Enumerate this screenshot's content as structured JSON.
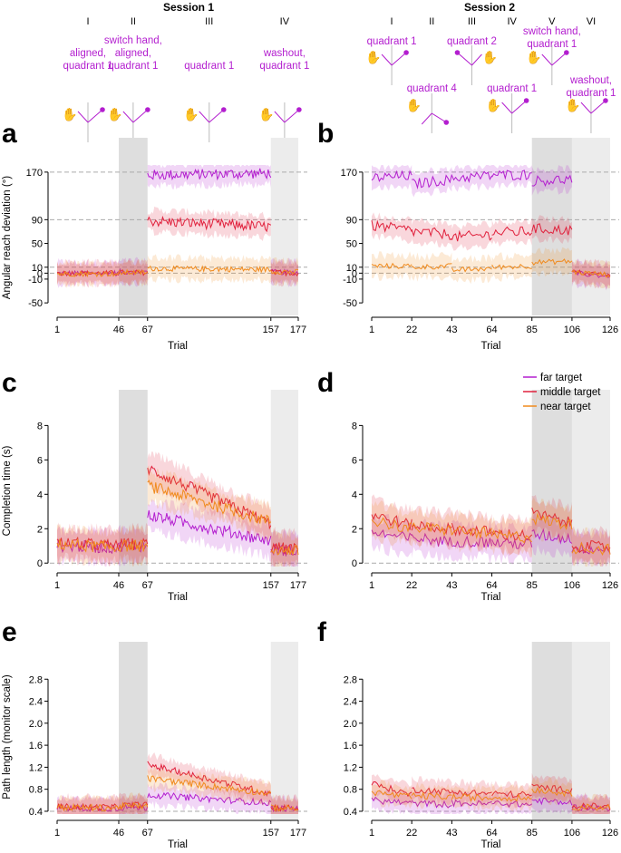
{
  "chart_data": {
    "type": "line",
    "legend": {
      "placement": "top-right of panel d",
      "entries": [
        {
          "name": "far target",
          "color": "#b31ecf"
        },
        {
          "name": "middle target",
          "color": "#e0203c"
        },
        {
          "name": "near target",
          "color": "#f08a1c"
        }
      ]
    },
    "colors": {
      "far": "#b31ecf",
      "middle": "#e0203c",
      "near": "#f08a1c",
      "label": "#b31ecf",
      "shade_dark": "#dedede",
      "shade_light": "#ececec"
    },
    "sessions": [
      {
        "title": "Session 1",
        "phases": [
          {
            "numeral": "I",
            "label": "aligned, quadrant 1",
            "lines": [
              "aligned,",
              "quadrant 1"
            ],
            "start": 1,
            "end": 46,
            "shade": "none"
          },
          {
            "numeral": "II",
            "label": "switch hand, aligned, quadrant 1",
            "lines": [
              "switch hand,",
              "aligned,",
              "quadrant 1"
            ],
            "start": 46,
            "end": 67,
            "shade": "dark"
          },
          {
            "numeral": "III",
            "label": "quadrant 1",
            "lines": [
              "quadrant 1"
            ],
            "start": 67,
            "end": 157,
            "shade": "none"
          },
          {
            "numeral": "IV",
            "label": "washout, quadrant 1",
            "lines": [
              "washout,",
              "quadrant 1"
            ],
            "start": 157,
            "end": 177,
            "shade": "light"
          }
        ],
        "xlim": [
          1,
          177
        ],
        "xticks": [
          1,
          46,
          67,
          157,
          177
        ]
      },
      {
        "title": "Session 2",
        "phases": [
          {
            "numeral": "I",
            "label": "quadrant 1",
            "lines": [
              "quadrant 1"
            ],
            "start": 1,
            "end": 22,
            "shade": "none"
          },
          {
            "numeral": "II",
            "label": "quadrant 4",
            "lines": [
              "quadrant 4"
            ],
            "start": 22,
            "end": 43,
            "shade": "none"
          },
          {
            "numeral": "III",
            "label": "quadrant 2",
            "lines": [
              "quadrant 2"
            ],
            "start": 43,
            "end": 64,
            "shade": "none"
          },
          {
            "numeral": "IV",
            "label": "quadrant 1",
            "lines": [
              "quadrant 1"
            ],
            "start": 64,
            "end": 85,
            "shade": "none"
          },
          {
            "numeral": "V",
            "label": "switch hand, quadrant 1",
            "lines": [
              "switch hand,",
              "quadrant 1"
            ],
            "start": 85,
            "end": 106,
            "shade": "dark"
          },
          {
            "numeral": "VI",
            "label": "washout, quadrant 1",
            "lines": [
              "washout,",
              "quadrant 1"
            ],
            "start": 106,
            "end": 126,
            "shade": "light"
          }
        ],
        "xlim": [
          1,
          126
        ],
        "xticks": [
          1,
          22,
          43,
          64,
          85,
          106,
          126
        ]
      }
    ],
    "panels": [
      {
        "letter": "a",
        "session": 0,
        "metric": "angle",
        "ylabel": "Angular reach deviation (°)",
        "xlabel": "Trial",
        "ylim": [
          -62,
          182
        ],
        "yticks": [
          170,
          90,
          50,
          10,
          0,
          -10,
          -50
        ],
        "ref_lines": [
          170,
          90,
          10,
          0
        ],
        "series": [
          {
            "name": "far target",
            "segments": [
              [
                1,
                46,
                0,
                0
              ],
              [
                46,
                67,
                2,
                2
              ],
              [
                67,
                157,
                165,
                168
              ],
              [
                157,
                177,
                2,
                1
              ]
            ]
          },
          {
            "name": "middle target",
            "segments": [
              [
                1,
                46,
                0,
                0
              ],
              [
                46,
                67,
                1,
                1
              ],
              [
                67,
                157,
                88,
                78
              ],
              [
                157,
                177,
                1,
                0
              ]
            ]
          },
          {
            "name": "near target",
            "segments": [
              [
                1,
                46,
                -1,
                -1
              ],
              [
                46,
                67,
                1,
                1
              ],
              [
                67,
                157,
                8,
                6
              ],
              [
                157,
                177,
                3,
                2
              ]
            ]
          }
        ]
      },
      {
        "letter": "b",
        "session": 1,
        "metric": "angle",
        "ylabel": "",
        "xlabel": "Trial",
        "ylim": [
          -62,
          182
        ],
        "yticks": [
          170,
          90,
          50,
          10,
          0,
          -10,
          -50
        ],
        "ref_lines": [
          170,
          90,
          10,
          0
        ],
        "series": [
          {
            "name": "far target",
            "segments": [
              [
                1,
                22,
                160,
                164
              ],
              [
                22,
                43,
                150,
                158
              ],
              [
                43,
                64,
                160,
                164
              ],
              [
                64,
                85,
                165,
                166
              ],
              [
                85,
                106,
                155,
                158
              ],
              [
                106,
                126,
                0,
                -5
              ]
            ]
          },
          {
            "name": "middle target",
            "segments": [
              [
                1,
                22,
                80,
                72
              ],
              [
                22,
                43,
                70,
                65
              ],
              [
                43,
                64,
                60,
                65
              ],
              [
                64,
                85,
                68,
                70
              ],
              [
                85,
                106,
                75,
                72
              ],
              [
                106,
                126,
                2,
                -3
              ]
            ]
          },
          {
            "name": "near target",
            "segments": [
              [
                1,
                22,
                12,
                12
              ],
              [
                22,
                43,
                10,
                12
              ],
              [
                43,
                64,
                5,
                8
              ],
              [
                64,
                85,
                10,
                12
              ],
              [
                85,
                106,
                18,
                20
              ],
              [
                106,
                126,
                2,
                -3
              ]
            ]
          }
        ]
      },
      {
        "letter": "c",
        "session": 0,
        "metric": "time",
        "ylabel": "Completion time (s)",
        "xlabel": "Trial",
        "ylim": [
          -0.2,
          8.6
        ],
        "yticks": [
          0,
          2,
          4,
          6,
          8
        ],
        "ref_lines": [
          0
        ],
        "series": [
          {
            "name": "far target",
            "segments": [
              [
                1,
                46,
                1.0,
                0.9
              ],
              [
                46,
                67,
                1.0,
                1.0
              ],
              [
                67,
                157,
                2.8,
                1.3
              ],
              [
                157,
                177,
                0.8,
                0.7
              ]
            ]
          },
          {
            "name": "middle target",
            "segments": [
              [
                1,
                46,
                1.2,
                1.0
              ],
              [
                46,
                67,
                1.1,
                1.1
              ],
              [
                67,
                157,
                5.5,
                2.3
              ],
              [
                157,
                177,
                0.9,
                0.8
              ]
            ]
          },
          {
            "name": "near target",
            "segments": [
              [
                1,
                46,
                1.1,
                0.9
              ],
              [
                46,
                67,
                1.0,
                1.0
              ],
              [
                67,
                157,
                4.5,
                2.4
              ],
              [
                157,
                177,
                0.8,
                0.7
              ]
            ]
          }
        ]
      },
      {
        "letter": "d",
        "session": 1,
        "metric": "time",
        "ylabel": "",
        "xlabel": "Trial",
        "ylim": [
          -0.2,
          8.6
        ],
        "yticks": [
          0,
          2,
          4,
          6,
          8
        ],
        "ref_lines": [
          0
        ],
        "series": [
          {
            "name": "far target",
            "segments": [
              [
                1,
                22,
                1.8,
                1.4
              ],
              [
                22,
                43,
                1.5,
                1.2
              ],
              [
                43,
                64,
                1.3,
                1.2
              ],
              [
                64,
                85,
                1.2,
                1.1
              ],
              [
                85,
                106,
                1.7,
                1.4
              ],
              [
                106,
                126,
                0.9,
                0.8
              ]
            ]
          },
          {
            "name": "middle target",
            "segments": [
              [
                1,
                22,
                2.8,
                2.2
              ],
              [
                22,
                43,
                2.2,
                2.0
              ],
              [
                43,
                64,
                2.0,
                1.8
              ],
              [
                64,
                85,
                1.7,
                1.6
              ],
              [
                85,
                106,
                2.9,
                2.3
              ],
              [
                106,
                126,
                1.0,
                0.9
              ]
            ]
          },
          {
            "name": "near target",
            "segments": [
              [
                1,
                22,
                2.5,
                2.0
              ],
              [
                22,
                43,
                2.1,
                1.9
              ],
              [
                43,
                64,
                1.9,
                1.7
              ],
              [
                64,
                85,
                1.6,
                1.5
              ],
              [
                85,
                106,
                2.6,
                2.2
              ],
              [
                106,
                126,
                0.9,
                0.8
              ]
            ]
          }
        ]
      },
      {
        "letter": "e",
        "session": 0,
        "metric": "path",
        "ylabel": "Path length (monitor scale)",
        "xlabel": "Trial",
        "ylim": [
          0.35,
          3.15
        ],
        "yticks": [
          0.4,
          0.8,
          1.2,
          1.6,
          2.0,
          2.4,
          2.8
        ],
        "ref_lines": [
          0.4
        ],
        "series": [
          {
            "name": "far target",
            "segments": [
              [
                1,
                46,
                0.46,
                0.45
              ],
              [
                46,
                67,
                0.47,
                0.47
              ],
              [
                67,
                157,
                0.7,
                0.55
              ],
              [
                157,
                177,
                0.45,
                0.45
              ]
            ]
          },
          {
            "name": "middle target",
            "segments": [
              [
                1,
                46,
                0.48,
                0.47
              ],
              [
                46,
                67,
                0.5,
                0.52
              ],
              [
                67,
                157,
                1.25,
                0.72
              ],
              [
                157,
                177,
                0.47,
                0.46
              ]
            ]
          },
          {
            "name": "near target",
            "segments": [
              [
                1,
                46,
                0.47,
                0.46
              ],
              [
                46,
                67,
                0.49,
                0.5
              ],
              [
                67,
                157,
                1.0,
                0.72
              ],
              [
                157,
                177,
                0.46,
                0.45
              ]
            ]
          }
        ]
      },
      {
        "letter": "f",
        "session": 1,
        "metric": "path",
        "ylabel": "",
        "xlabel": "Trial",
        "ylim": [
          0.35,
          3.15
        ],
        "yticks": [
          0.4,
          0.8,
          1.2,
          1.6,
          2.0,
          2.4,
          2.8
        ],
        "ref_lines": [
          0.4
        ],
        "series": [
          {
            "name": "far target",
            "segments": [
              [
                1,
                22,
                0.6,
                0.55
              ],
              [
                22,
                43,
                0.55,
                0.52
              ],
              [
                43,
                64,
                0.55,
                0.53
              ],
              [
                64,
                85,
                0.55,
                0.52
              ],
              [
                85,
                106,
                0.6,
                0.55
              ],
              [
                106,
                126,
                0.47,
                0.46
              ]
            ]
          },
          {
            "name": "middle target",
            "segments": [
              [
                1,
                22,
                0.9,
                0.7
              ],
              [
                22,
                43,
                0.8,
                0.75
              ],
              [
                43,
                64,
                0.75,
                0.72
              ],
              [
                64,
                85,
                0.72,
                0.7
              ],
              [
                85,
                106,
                0.85,
                0.78
              ],
              [
                106,
                126,
                0.5,
                0.48
              ]
            ]
          },
          {
            "name": "near target",
            "segments": [
              [
                1,
                22,
                0.75,
                0.65
              ],
              [
                22,
                43,
                0.68,
                0.66
              ],
              [
                43,
                64,
                0.66,
                0.64
              ],
              [
                64,
                85,
                0.65,
                0.64
              ],
              [
                85,
                106,
                0.8,
                0.72
              ],
              [
                106,
                126,
                0.48,
                0.47
              ]
            ]
          }
        ]
      }
    ]
  }
}
